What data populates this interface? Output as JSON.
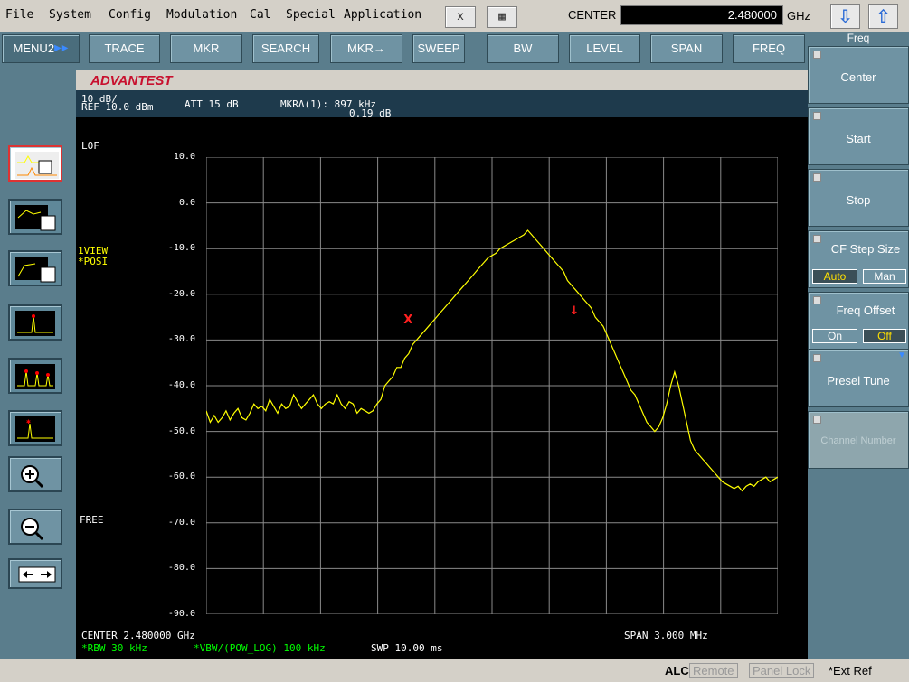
{
  "menubar": {
    "items": [
      "File",
      "System",
      "Config",
      "Modulation",
      "Cal",
      "Special",
      "Application"
    ],
    "close_glyph": "x",
    "calc_glyph": "▦",
    "center_label": "CENTER",
    "center_value": "2.480000",
    "center_unit": "GHz",
    "arrow_down": "⇩",
    "arrow_up": "⇧"
  },
  "topbar": {
    "menu_label": "MENU2",
    "buttons": [
      "TRACE",
      "MKR",
      "SEARCH",
      "MKR→",
      "SWEEP",
      "BW",
      "LEVEL",
      "SPAN",
      "FREQ"
    ]
  },
  "softkeys": {
    "header": "Freq",
    "center": "Center",
    "start": "Start",
    "stop": "Stop",
    "cf_step": "CF Step Size",
    "auto": "Auto",
    "man": "Man",
    "freq_offset": "Freq Offset",
    "on": "On",
    "off": "Off",
    "presel": "Presel Tune",
    "channel": "Channel Number"
  },
  "screen": {
    "brand": "ADVANTEST",
    "scale": "10 dB/",
    "ref": "REF 10.0 dBm",
    "att": "ATT 15 dB",
    "mkr": "MKRΔ(1): 897 kHz",
    "mkr_val": "0.19 dB",
    "lof": "LOF",
    "view": "1VIEW",
    "posi": "*POSI",
    "free": "FREE",
    "center": "CENTER 2.480000 GHz",
    "span": "SPAN 3.000 MHz",
    "rbw": "*RBW 30 kHz",
    "vbw": "*VBW/(POW_LOG) 100 kHz",
    "swp": "SWP 10.00 ms"
  },
  "status": {
    "alc": "ALC",
    "remote": "Remote",
    "panel_lock": "Panel Lock",
    "ext_ref": "*Ext Ref"
  },
  "chart_data": {
    "type": "line",
    "ylim": [
      -90,
      10
    ],
    "yticks": [
      "10.0",
      "0.0",
      "-10.0",
      "-20.0",
      "-30.0",
      "-40.0",
      "-50.0",
      "-60.0",
      "-70.0",
      "-80.0",
      "-90.0"
    ],
    "grid": true,
    "trace_color": "#ffff00",
    "series": [
      {
        "values": [
          -45.5,
          -48,
          -46.5,
          -48,
          -47,
          -45.5,
          -47.5,
          -46,
          -45,
          -47,
          -47.5,
          -46,
          -44,
          -45,
          -44.5,
          -45.5,
          -43,
          -44.5,
          -46,
          -44,
          -45,
          -44.5,
          -42,
          -43.5,
          -45,
          -44,
          -43,
          -42,
          -44,
          -45,
          -44,
          -43.5,
          -44,
          -42,
          -44,
          -45,
          -43.5,
          -44,
          -46,
          -45,
          -45.5,
          -46,
          -45.5,
          -44,
          -43,
          -40,
          -39,
          -38,
          -36,
          -36,
          -34,
          -33,
          -31,
          -30,
          -29,
          -28,
          -27,
          -26,
          -25,
          -24,
          -23,
          -22,
          -21,
          -20,
          -19,
          -18,
          -17,
          -16,
          -15,
          -14,
          -13,
          -12,
          -11.5,
          -11,
          -10,
          -9.5,
          -9,
          -8.5,
          -8,
          -7.5,
          -7,
          -6,
          -7,
          -8,
          -9,
          -10,
          -11,
          -12,
          -13,
          -14,
          -15,
          -17,
          -18,
          -19,
          -20,
          -21,
          -22,
          -23,
          -25,
          -26,
          -27,
          -29,
          -31,
          -33,
          -35,
          -37,
          -39,
          -41,
          -42,
          -44,
          -46,
          -48,
          -49,
          -50,
          -49,
          -47,
          -44,
          -40,
          -37,
          -40,
          -44,
          -48,
          -52,
          -54,
          -55,
          -56,
          -57,
          -58,
          -59,
          -60,
          -61,
          -61.5,
          -62,
          -62.5,
          -62,
          -63,
          -62,
          -61.5,
          -62,
          -61,
          -60.5,
          -60,
          -61,
          -60.5,
          -60
        ]
      }
    ],
    "markers": [
      {
        "label": "1",
        "x_frac": 0.35,
        "value": -26
      },
      {
        "label": "1",
        "x_frac": 0.64,
        "value": -24
      }
    ]
  },
  "tools": [
    "trace-view-icon",
    "trace-marker-icon",
    "trace-hand-icon",
    "single-peak-icon",
    "multi-peak-icon",
    "peak-marker-icon",
    "zoom-in-icon",
    "zoom-out-icon",
    "expand-icon"
  ]
}
